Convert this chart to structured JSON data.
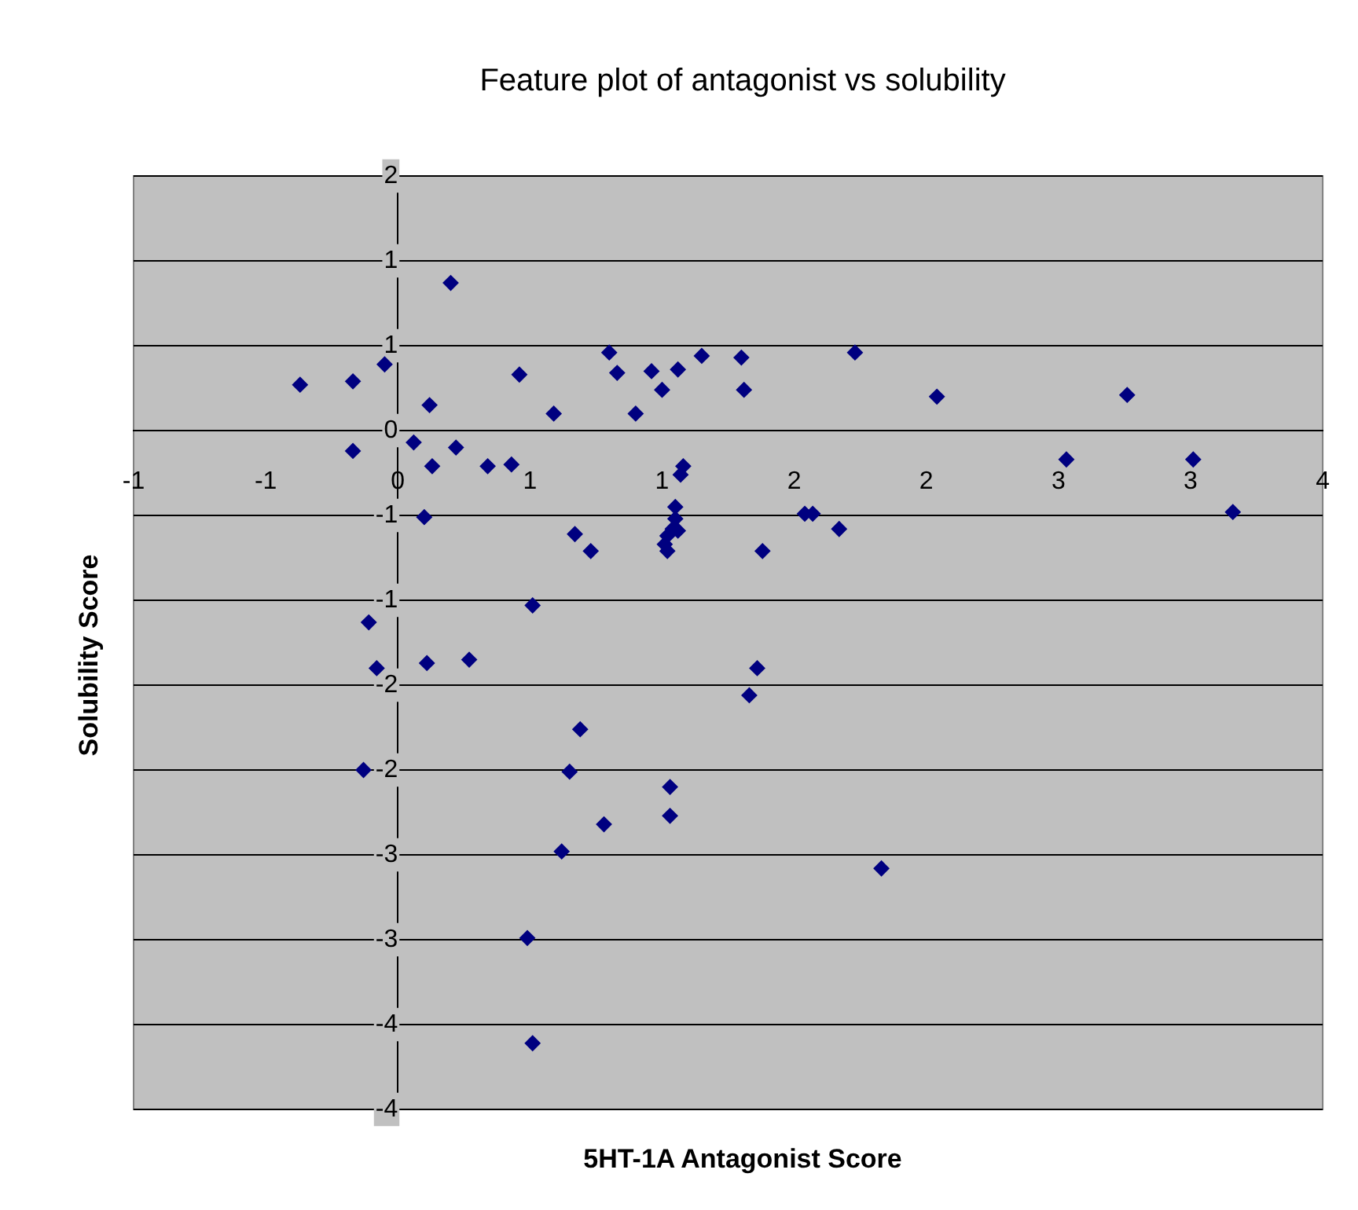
{
  "chart_data": {
    "type": "scatter",
    "title": "Feature plot of antagonist vs solubility",
    "xlabel": "5HT-1A Antagonist Score",
    "ylabel": "Solubility Score",
    "xlim": [
      -1,
      3.5
    ],
    "ylim": [
      -4,
      1.5
    ],
    "xticks": [
      -1,
      {
        "value": -0.5,
        "label": "-1"
      },
      0,
      {
        "value": 0.5,
        "label": "1"
      },
      1,
      {
        "value": 1.5,
        "label": "2"
      },
      2,
      {
        "value": 2.5,
        "label": "3"
      },
      3,
      {
        "value": 3.5,
        "label": "4"
      }
    ],
    "yticks": [
      {
        "value": 1.5,
        "label": "2"
      },
      1,
      {
        "value": 0.5,
        "label": "1"
      },
      0,
      {
        "value": -0.5,
        "label": "-1"
      },
      -1,
      {
        "value": -1.5,
        "label": "-2"
      },
      -2,
      {
        "value": -2.5,
        "label": "-3"
      },
      -3,
      {
        "value": -3.5,
        "label": "-4"
      },
      -4
    ],
    "grid": "y",
    "marker": "diamond",
    "legend": false,
    "series": [
      {
        "color": "#000080",
        "x": [
          -0.37,
          -0.17,
          -0.05,
          -0.17,
          0.06,
          0.12,
          0.2,
          0.13,
          0.22,
          0.34,
          0.43,
          0.46,
          0.59,
          0.8,
          0.83,
          0.1,
          -0.11,
          -0.08,
          -0.13,
          0.11,
          0.27,
          0.51,
          0.67,
          0.73,
          0.69,
          0.65,
          0.62,
          0.78,
          0.49,
          0.51,
          0.9,
          0.96,
          1.0,
          1.06,
          1.15,
          1.3,
          1.31,
          1.08,
          1.07,
          1.05,
          1.05,
          1.04,
          1.02,
          1.01,
          1.02,
          1.06,
          1.03,
          1.03,
          1.36,
          1.33,
          1.38,
          1.54,
          1.57,
          1.67,
          1.73,
          2.04,
          1.83,
          2.53,
          2.76,
          3.01,
          3.16
        ],
        "values": [
          0.27,
          0.29,
          0.39,
          -0.12,
          -0.07,
          0.15,
          0.87,
          -0.21,
          -0.1,
          -0.21,
          -0.2,
          0.33,
          0.1,
          0.46,
          0.34,
          -0.51,
          -1.13,
          -1.4,
          -2.0,
          -1.37,
          -1.35,
          -1.03,
          -0.61,
          -0.71,
          -1.76,
          -2.01,
          -2.48,
          -2.32,
          -2.99,
          -3.61,
          0.1,
          0.35,
          0.24,
          0.36,
          0.44,
          0.43,
          0.24,
          -0.21,
          -0.26,
          -0.45,
          -0.52,
          -0.58,
          -0.62,
          -0.67,
          -0.71,
          -0.59,
          -2.1,
          -2.27,
          -1.4,
          -1.56,
          -0.71,
          -0.49,
          -0.49,
          -0.58,
          0.46,
          0.2,
          -2.58,
          -0.17,
          0.21,
          -0.17,
          -0.48
        ]
      }
    ]
  }
}
